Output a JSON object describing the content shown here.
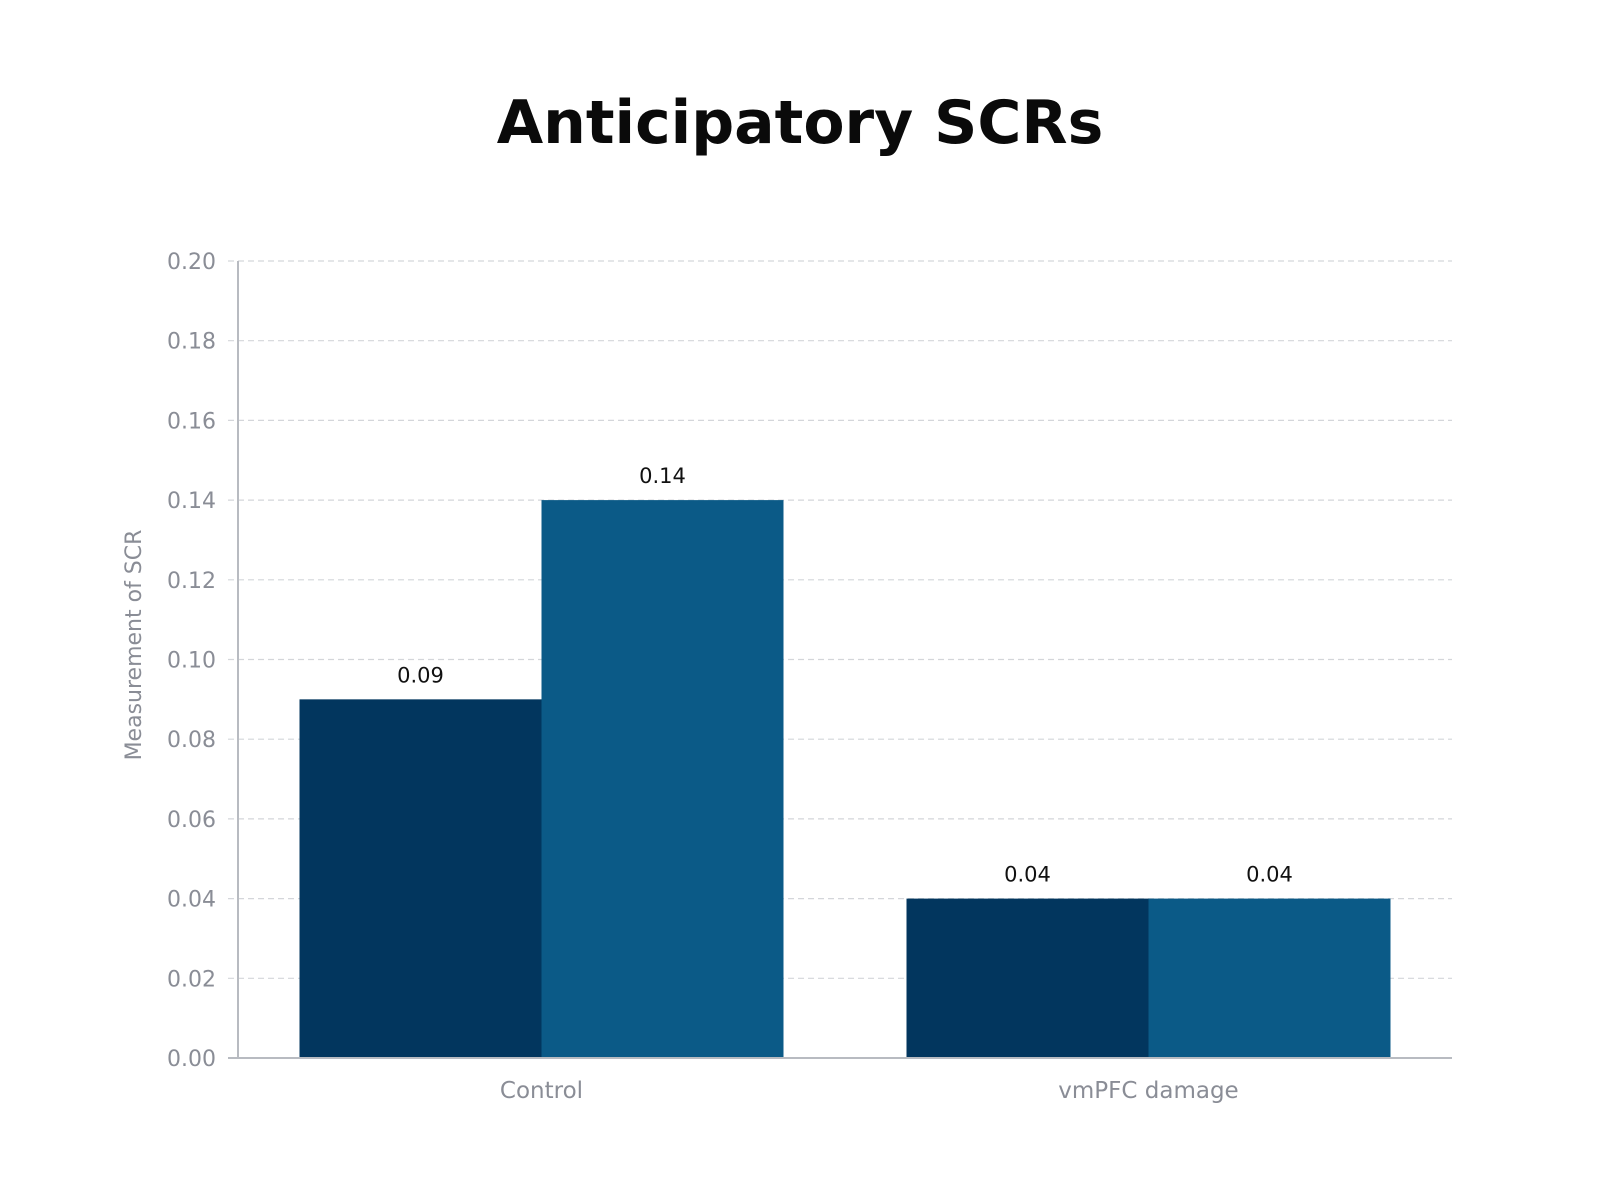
{
  "chart_data": {
    "type": "bar",
    "title": "Anticipatory SCRs",
    "xlabel": "",
    "ylabel": "Measurement of SCR",
    "categories": [
      "Control",
      "vmPFC damage"
    ],
    "series": [
      {
        "values": [
          0.09,
          0.04
        ],
        "color": "#02365e"
      },
      {
        "values": [
          0.14,
          0.04
        ],
        "color": "#0b5a87"
      }
    ],
    "data_labels": [
      [
        "0.09",
        "0.04"
      ],
      [
        "0.14",
        "0.04"
      ]
    ],
    "ylim": [
      0,
      0.2
    ],
    "yticks": [
      "0.00",
      "0.02",
      "0.04",
      "0.06",
      "0.08",
      "0.10",
      "0.12",
      "0.14",
      "0.16",
      "0.18",
      "0.20"
    ],
    "grid": true,
    "legend": "none"
  }
}
